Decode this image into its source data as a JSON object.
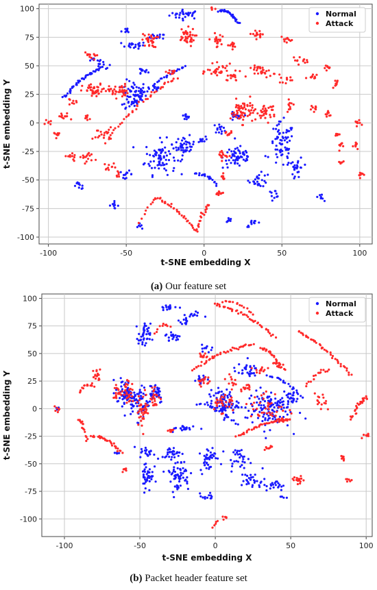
{
  "chart_data": [
    {
      "type": "scatter",
      "panel": "a",
      "xlabel": "t-SNE embedding X",
      "ylabel": "t-SNE embedding Y",
      "xlim": [
        -106,
        108
      ],
      "ylim": [
        -106,
        104
      ],
      "xticks": [
        -100,
        -50,
        0,
        50,
        100
      ],
      "yticks": [
        -100,
        -75,
        -50,
        -25,
        0,
        25,
        50,
        75,
        100
      ],
      "grid": true,
      "legend": "top-right",
      "colors": {
        "Normal": "#1a1aff",
        "Attack": "#ff2a2a"
      },
      "series": [
        {
          "name": "Normal",
          "clusters": [
            [
              -12,
              95,
              10,
              4,
              30
            ],
            [
              -30,
              75,
              5,
              3,
              15
            ],
            [
              -45,
              68,
              8,
              3,
              20
            ],
            [
              -65,
              50,
              5,
              4,
              12
            ],
            [
              -40,
              45,
              4,
              3,
              12
            ],
            [
              -45,
              25,
              8,
              12,
              60
            ],
            [
              -30,
              30,
              4,
              3,
              10
            ],
            [
              -28,
              -30,
              10,
              15,
              80
            ],
            [
              -12,
              -20,
              6,
              8,
              40
            ],
            [
              -50,
              -45,
              4,
              3,
              12
            ],
            [
              -80,
              -55,
              4,
              3,
              10
            ],
            [
              -58,
              -72,
              3,
              3,
              10
            ],
            [
              -42,
              -90,
              2,
              2,
              6
            ],
            [
              22,
              -30,
              10,
              10,
              60
            ],
            [
              50,
              -20,
              8,
              20,
              70
            ],
            [
              60,
              -40,
              4,
              10,
              25
            ],
            [
              35,
              -50,
              6,
              6,
              25
            ],
            [
              32,
              -88,
              5,
              3,
              12
            ],
            [
              15,
              -85,
              3,
              3,
              8
            ],
            [
              45,
              -62,
              4,
              3,
              10
            ],
            [
              75,
              -65,
              2,
              4,
              8
            ],
            [
              20,
              5,
              4,
              4,
              15
            ],
            [
              10,
              -5,
              4,
              4,
              15
            ],
            [
              -2,
              -15,
              3,
              3,
              10
            ],
            [
              -12,
              5,
              3,
              3,
              10
            ],
            [
              -50,
              80,
              3,
              3,
              8
            ],
            [
              -70,
              55,
              3,
              2,
              8
            ]
          ],
          "arcs": [
            [
              22,
              87,
              10,
              98,
              35
            ],
            [
              -90,
              22,
              -68,
              46,
              40
            ],
            [
              -50,
              12,
              -12,
              50,
              40
            ],
            [
              -5,
              -45,
              8,
              -55,
              20
            ]
          ]
        },
        {
          "name": "Attack",
          "clusters": [
            [
              -12,
              75,
              6,
              8,
              40
            ],
            [
              -35,
              72,
              5,
              6,
              30
            ],
            [
              -55,
              28,
              6,
              6,
              40
            ],
            [
              -70,
              28,
              8,
              6,
              40
            ],
            [
              -90,
              5,
              4,
              4,
              12
            ],
            [
              -75,
              5,
              3,
              3,
              10
            ],
            [
              -65,
              -10,
              6,
              6,
              20
            ],
            [
              -75,
              -30,
              5,
              5,
              15
            ],
            [
              -60,
              -38,
              4,
              3,
              10
            ],
            [
              -85,
              -30,
              4,
              4,
              10
            ],
            [
              8,
              72,
              3,
              6,
              20
            ],
            [
              18,
              68,
              4,
              3,
              12
            ],
            [
              35,
              78,
              6,
              3,
              15
            ],
            [
              53,
              72,
              4,
              3,
              10
            ],
            [
              62,
              55,
              5,
              3,
              12
            ],
            [
              70,
              40,
              4,
              3,
              10
            ],
            [
              80,
              48,
              3,
              3,
              8
            ],
            [
              85,
              35,
              3,
              3,
              8
            ],
            [
              38,
              45,
              8,
              5,
              30
            ],
            [
              53,
              38,
              4,
              3,
              10
            ],
            [
              55,
              15,
              3,
              5,
              10
            ],
            [
              70,
              12,
              3,
              3,
              8
            ],
            [
              80,
              8,
              3,
              3,
              8
            ],
            [
              100,
              0,
              3,
              2,
              8
            ],
            [
              85,
              -10,
              2,
              2,
              6
            ],
            [
              88,
              -20,
              2,
              4,
              8
            ],
            [
              98,
              -20,
              2,
              4,
              8
            ],
            [
              88,
              -35,
              2,
              2,
              6
            ],
            [
              100,
              -45,
              2,
              3,
              8
            ],
            [
              25,
              10,
              8,
              10,
              60
            ],
            [
              40,
              10,
              6,
              8,
              30
            ],
            [
              10,
              45,
              8,
              6,
              30
            ],
            [
              18,
              40,
              5,
              4,
              15
            ],
            [
              15,
              -10,
              3,
              3,
              10
            ],
            [
              12,
              -28,
              3,
              5,
              15
            ],
            [
              12,
              -48,
              2,
              3,
              8
            ],
            [
              10,
              -62,
              3,
              3,
              10
            ],
            [
              5,
              100,
              2,
              2,
              6
            ],
            [
              -20,
              45,
              4,
              3,
              10
            ],
            [
              -85,
              18,
              3,
              3,
              8
            ],
            [
              -100,
              0,
              2,
              2,
              6
            ],
            [
              -95,
              -10,
              2,
              3,
              8
            ],
            [
              -55,
              -45,
              2,
              2,
              6
            ],
            [
              -72,
              58,
              3,
              3,
              8
            ],
            [
              -75,
              60,
              2,
              2,
              5
            ]
          ],
          "arcs": [
            [
              -60,
              -10,
              -18,
              40,
              35
            ],
            [
              -30,
              -66,
              -5,
              -95,
              30
            ],
            [
              -5,
              -95,
              3,
              -72,
              20
            ],
            [
              -42,
              -88,
              -30,
              -66,
              10
            ]
          ]
        }
      ]
    },
    {
      "type": "scatter",
      "panel": "b",
      "xlabel": "t-SNE embedding X",
      "ylabel": "t-SNE embedding Y",
      "xlim": [
        -115,
        104
      ],
      "ylim": [
        -116,
        104
      ],
      "xticks": [
        -100,
        -50,
        0,
        50,
        100
      ],
      "yticks": [
        -100,
        -75,
        -50,
        -25,
        0,
        25,
        50,
        75,
        100
      ],
      "grid": true,
      "legend": "top-right",
      "colors": {
        "Normal": "#1a1aff",
        "Attack": "#ff2a2a"
      },
      "series": [
        {
          "name": "Normal",
          "clusters": [
            [
              -32,
              92,
              6,
              3,
              15
            ],
            [
              -15,
              85,
              6,
              3,
              12
            ],
            [
              -22,
              78,
              4,
              3,
              10
            ],
            [
              -47,
              65,
              4,
              12,
              40
            ],
            [
              -60,
              15,
              6,
              12,
              60
            ],
            [
              -50,
              5,
              6,
              15,
              60
            ],
            [
              -40,
              15,
              6,
              10,
              40
            ],
            [
              -28,
              65,
              5,
              5,
              20
            ],
            [
              -5,
              55,
              4,
              3,
              10
            ],
            [
              -20,
              -18,
              10,
              3,
              20
            ],
            [
              -45,
              -40,
              5,
              5,
              20
            ],
            [
              -28,
              -40,
              8,
              5,
              25
            ],
            [
              -45,
              -60,
              4,
              15,
              40
            ],
            [
              -25,
              -60,
              8,
              15,
              60
            ],
            [
              -5,
              -45,
              5,
              12,
              40
            ],
            [
              15,
              -45,
              8,
              8,
              30
            ],
            [
              25,
              -65,
              8,
              8,
              30
            ],
            [
              40,
              -70,
              6,
              5,
              20
            ],
            [
              5,
              5,
              10,
              12,
              80
            ],
            [
              35,
              0,
              15,
              18,
              120
            ],
            [
              50,
              10,
              5,
              8,
              25
            ],
            [
              20,
              35,
              8,
              6,
              30
            ],
            [
              -10,
              25,
              4,
              5,
              15
            ],
            [
              45,
              -80,
              2,
              2,
              5
            ],
            [
              -5,
              -80,
              5,
              3,
              12
            ],
            [
              -65,
              -40,
              2,
              2,
              5
            ],
            [
              -105,
              0,
              2,
              2,
              5
            ]
          ],
          "arcs": [
            [
              -12,
              5,
              15,
              -15,
              20
            ],
            [
              35,
              30,
              58,
              10,
              20
            ]
          ]
        },
        {
          "name": "Attack",
          "clusters": [
            [
              -58,
              15,
              4,
              10,
              30
            ],
            [
              -48,
              0,
              4,
              15,
              40
            ],
            [
              -40,
              10,
              3,
              10,
              25
            ],
            [
              -65,
              15,
              3,
              6,
              15
            ],
            [
              -78,
              30,
              3,
              6,
              15
            ],
            [
              -30,
              -20,
              3,
              3,
              8
            ],
            [
              -8,
              48,
              3,
              3,
              10
            ],
            [
              -8,
              25,
              4,
              5,
              15
            ],
            [
              10,
              25,
              3,
              5,
              12
            ],
            [
              20,
              20,
              4,
              4,
              12
            ],
            [
              30,
              35,
              4,
              4,
              12
            ],
            [
              40,
              40,
              4,
              3,
              10
            ],
            [
              5,
              5,
              8,
              10,
              30
            ],
            [
              35,
              0,
              12,
              15,
              40
            ],
            [
              45,
              -10,
              4,
              3,
              10
            ],
            [
              35,
              -35,
              4,
              2,
              8
            ],
            [
              -105,
              0,
              2,
              2,
              6
            ],
            [
              -60,
              -55,
              2,
              3,
              6
            ],
            [
              55,
              -65,
              4,
              4,
              15
            ],
            [
              70,
              5,
              4,
              8,
              15
            ],
            [
              85,
              -45,
              2,
              4,
              8
            ],
            [
              100,
              -25,
              2,
              4,
              8
            ],
            [
              88,
              -65,
              2,
              2,
              6
            ]
          ],
          "arcs": [
            [
              -82,
              -25,
              -62,
              -40,
              30
            ],
            [
              -90,
              -10,
              -85,
              -30,
              15
            ],
            [
              -90,
              15,
              -80,
              20,
              15
            ],
            [
              0,
              95,
              40,
              65,
              40
            ],
            [
              5,
              97,
              25,
              85,
              15
            ],
            [
              -15,
              35,
              25,
              58,
              40
            ],
            [
              30,
              55,
              45,
              35,
              25
            ],
            [
              55,
              70,
              90,
              30,
              40
            ],
            [
              75,
              35,
              60,
              20,
              15
            ],
            [
              15,
              -25,
              50,
              -10,
              40
            ],
            [
              90,
              -10,
              100,
              10,
              25
            ],
            [
              -2,
              -108,
              8,
              -100,
              10
            ],
            [
              -30,
              75,
              -40,
              68,
              10
            ]
          ]
        }
      ]
    }
  ],
  "captions": {
    "a_letter": "(a)",
    "a_text": " Our feature set",
    "b_letter": "(b)",
    "b_text": " Packet header feature set"
  }
}
